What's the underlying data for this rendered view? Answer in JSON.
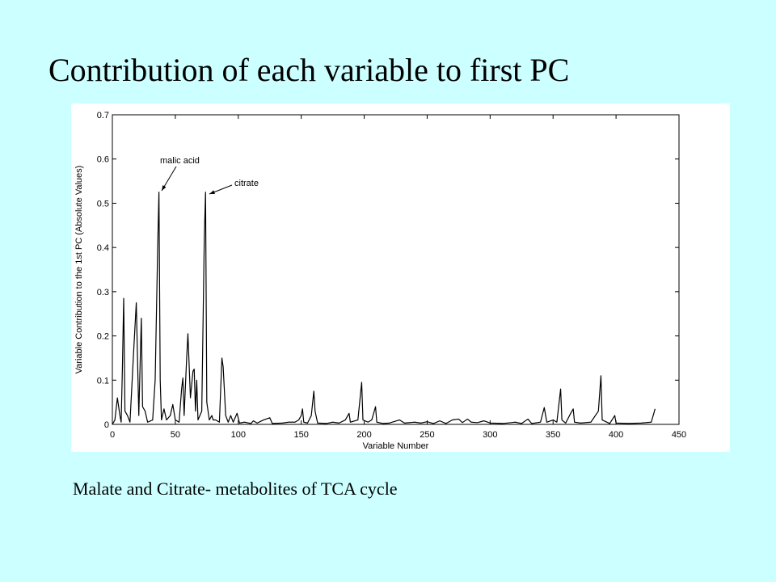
{
  "slide": {
    "title": "Contribution of each variable to first PC",
    "caption": "Malate and Citrate- metabolites of TCA cycle"
  },
  "chart_data": {
    "type": "line",
    "xlabel": "Variable Number",
    "ylabel": "Variable Contribution to the 1st PC (Absolute Values)",
    "annotations": [
      "malic acid",
      "citrate"
    ],
    "color": "#000000",
    "xlim": [
      0,
      450
    ],
    "xticks": [
      0,
      50,
      100,
      150,
      200,
      250,
      300,
      350,
      400,
      450
    ],
    "ylim": [
      0,
      0.7
    ],
    "yticks": [
      0,
      0.1,
      0.2,
      0.3,
      0.4,
      0.5,
      0.6,
      0.7
    ],
    "x": [
      0,
      2,
      4,
      6,
      7,
      8,
      9,
      10,
      12,
      14,
      17,
      19,
      21,
      23,
      24,
      26,
      28,
      32,
      34,
      36,
      37,
      38,
      39,
      41,
      43,
      46,
      48,
      50,
      53,
      55,
      56,
      57,
      59,
      60,
      62,
      64,
      65,
      66,
      67,
      68,
      71,
      73,
      74,
      75,
      77,
      79,
      80,
      82,
      85,
      87,
      88,
      90,
      92,
      94,
      96,
      99,
      101,
      105,
      110,
      112,
      115,
      120,
      125,
      127,
      135,
      140,
      145,
      148,
      150,
      151,
      152,
      155,
      158,
      160,
      161,
      163,
      170,
      175,
      180,
      185,
      188,
      189,
      195,
      198,
      199,
      203,
      206,
      209,
      210,
      215,
      220,
      228,
      232,
      240,
      245,
      250,
      255,
      260,
      265,
      270,
      275,
      278,
      282,
      285,
      290,
      295,
      300,
      310,
      320,
      325,
      330,
      333,
      340,
      343,
      345,
      350,
      353,
      356,
      357,
      360,
      364,
      366,
      367,
      372,
      380,
      386,
      388,
      389,
      395,
      399,
      400,
      410,
      420,
      428,
      431
    ],
    "values": [
      0,
      0.01,
      0.06,
      0.02,
      0.005,
      0.13,
      0.285,
      0.03,
      0.02,
      0.005,
      0.17,
      0.275,
      0.02,
      0.24,
      0.04,
      0.03,
      0.005,
      0.01,
      0.1,
      0.4,
      0.525,
      0.1,
      0.01,
      0.035,
      0.01,
      0.02,
      0.045,
      0.01,
      0.005,
      0.08,
      0.105,
      0.02,
      0.15,
      0.205,
      0.06,
      0.12,
      0.125,
      0.03,
      0.1,
      0.01,
      0.03,
      0.42,
      0.525,
      0.05,
      0.01,
      0.02,
      0.01,
      0.01,
      0.005,
      0.15,
      0.13,
      0.02,
      0.005,
      0.02,
      0.005,
      0.025,
      0.003,
      0.005,
      0.002,
      0.008,
      0.003,
      0.01,
      0.015,
      0.002,
      0.003,
      0.005,
      0.005,
      0.01,
      0.02,
      0.035,
      0.005,
      0.003,
      0.02,
      0.075,
      0.03,
      0.003,
      0.002,
      0.005,
      0.003,
      0.01,
      0.025,
      0.005,
      0.01,
      0.095,
      0.01,
      0.005,
      0.01,
      0.04,
      0.005,
      0.002,
      0.003,
      0.01,
      0.003,
      0.005,
      0.003,
      0.006,
      0.002,
      0.008,
      0.002,
      0.01,
      0.012,
      0.004,
      0.012,
      0.005,
      0.004,
      0.008,
      0.003,
      0.002,
      0.005,
      0.002,
      0.012,
      0.002,
      0.005,
      0.038,
      0.005,
      0.01,
      0.005,
      0.08,
      0.01,
      0.003,
      0.025,
      0.035,
      0.005,
      0.003,
      0.005,
      0.03,
      0.11,
      0.01,
      0.002,
      0.02,
      0.003,
      0.002,
      0.003,
      0.005,
      0.035
    ]
  }
}
